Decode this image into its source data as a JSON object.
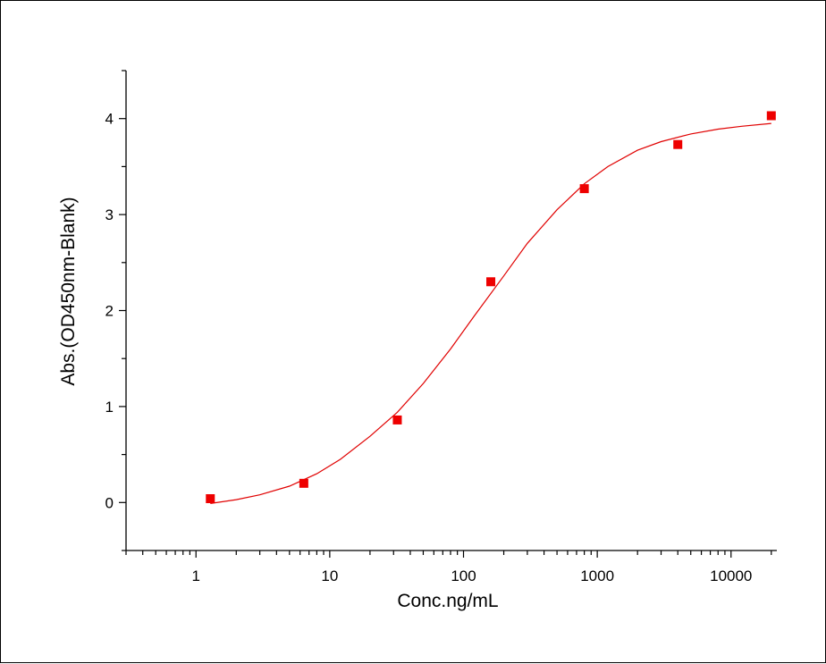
{
  "chart_data": {
    "type": "scatter",
    "title": "",
    "xlabel": "Conc.ng/mL",
    "ylabel": "Abs.(OD450nm-Blank)",
    "x_scale": "log",
    "xlim": [
      0.3,
      22000
    ],
    "ylim": [
      -0.5,
      4.5
    ],
    "x_ticks": [
      1,
      10,
      100,
      1000,
      10000
    ],
    "x_tick_labels": [
      "1",
      "10",
      "100",
      "1000",
      "10000"
    ],
    "y_ticks": [
      0,
      1,
      2,
      3,
      4
    ],
    "y_tick_labels": [
      "0",
      "1",
      "2",
      "3",
      "4"
    ],
    "grid": false,
    "legend": "none",
    "series": [
      {
        "kind": "points",
        "marker": "square",
        "color": "#ee0000",
        "x": [
          1.28,
          6.4,
          32,
          160,
          800,
          4000,
          20000
        ],
        "y": [
          0.04,
          0.2,
          0.86,
          2.3,
          3.27,
          3.73,
          4.03
        ]
      },
      {
        "kind": "fit-curve",
        "color": "#e00000",
        "x": [
          1.28,
          2,
          3,
          5,
          8,
          12,
          20,
          32,
          50,
          80,
          120,
          200,
          300,
          500,
          800,
          1200,
          2000,
          3000,
          5000,
          8000,
          12000,
          20000
        ],
        "y": [
          -0.01,
          0.03,
          0.08,
          0.17,
          0.3,
          0.45,
          0.69,
          0.94,
          1.24,
          1.6,
          1.94,
          2.36,
          2.7,
          3.05,
          3.32,
          3.5,
          3.67,
          3.76,
          3.84,
          3.89,
          3.92,
          3.95
        ]
      }
    ]
  }
}
